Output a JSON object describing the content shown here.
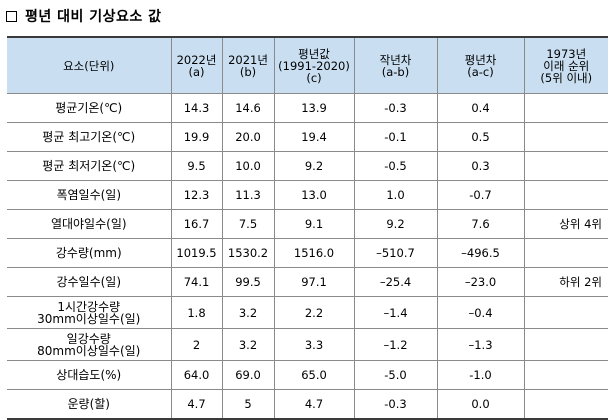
{
  "title": "평년 대비 기상요소 값",
  "headers": [
    [
      "요소(단위)"
    ],
    [
      "2022년",
      "(a)"
    ],
    [
      "2021년",
      "(b)"
    ],
    [
      "평년값",
      "(1991-2020)",
      "(c)"
    ],
    [
      "작년차",
      "(a-b)"
    ],
    [
      "평년차",
      "(a-c)"
    ],
    [
      "1973년",
      "이래 순위",
      "(5위 이내)"
    ]
  ],
  "rows": [
    {
      "label": [
        "평균기온(℃)"
      ],
      "y2022": "14.3",
      "y2021": "14.6",
      "normal": "13.9",
      "diff_prev": "-0.3",
      "diff_normal": "0.4",
      "rank": ""
    },
    {
      "label": [
        "평균 최고기온(℃)"
      ],
      "y2022": "19.9",
      "y2021": "20.0",
      "normal": "19.4",
      "diff_prev": "-0.1",
      "diff_normal": "0.5",
      "rank": ""
    },
    {
      "label": [
        "평균 최저기온(℃)"
      ],
      "y2022": "9.5",
      "y2021": "10.0",
      "normal": "9.2",
      "diff_prev": "-0.5",
      "diff_normal": "0.3",
      "rank": ""
    },
    {
      "label": [
        "폭염일수(일)"
      ],
      "y2022": "12.3",
      "y2021": "11.3",
      "normal": "13.0",
      "diff_prev": "1.0",
      "diff_normal": "-0.7",
      "rank": ""
    },
    {
      "label": [
        "열대야일수(일)"
      ],
      "y2022": "16.7",
      "y2021": "7.5",
      "normal": "9.1",
      "diff_prev": "9.2",
      "diff_normal": "7.6",
      "rank": "상위 4위"
    },
    {
      "label": [
        "강수량(mm)"
      ],
      "y2022": "1019.5",
      "y2021": "1530.2",
      "normal": "1516.0",
      "diff_prev": "–510.7",
      "diff_normal": "–496.5",
      "rank": ""
    },
    {
      "label": [
        "강수일수(일)"
      ],
      "y2022": "74.1",
      "y2021": "99.5",
      "normal": "97.1",
      "diff_prev": "–25.4",
      "diff_normal": "–23.0",
      "rank": "하위 2위"
    },
    {
      "label": [
        "1시간강수량",
        "30mm이상일수(일)"
      ],
      "y2022": "1.8",
      "y2021": "3.2",
      "normal": "2.2",
      "diff_prev": "–1.4",
      "diff_normal": "–0.4",
      "rank": ""
    },
    {
      "label": [
        "일강수량",
        "80mm이상일수(일)"
      ],
      "y2022": "2",
      "y2021": "3.2",
      "normal": "3.3",
      "diff_prev": "–1.2",
      "diff_normal": "–1.3",
      "rank": ""
    },
    {
      "label": [
        "상대습도(%)"
      ],
      "y2022": "64.0",
      "y2021": "69.0",
      "normal": "65.0",
      "diff_prev": "-5.0",
      "diff_normal": "-1.0",
      "rank": ""
    },
    {
      "label": [
        "운량(할)"
      ],
      "y2022": "4.7",
      "y2021": "5",
      "normal": "4.7",
      "diff_prev": "-0.3",
      "diff_normal": "0.0",
      "rank": ""
    }
  ]
}
